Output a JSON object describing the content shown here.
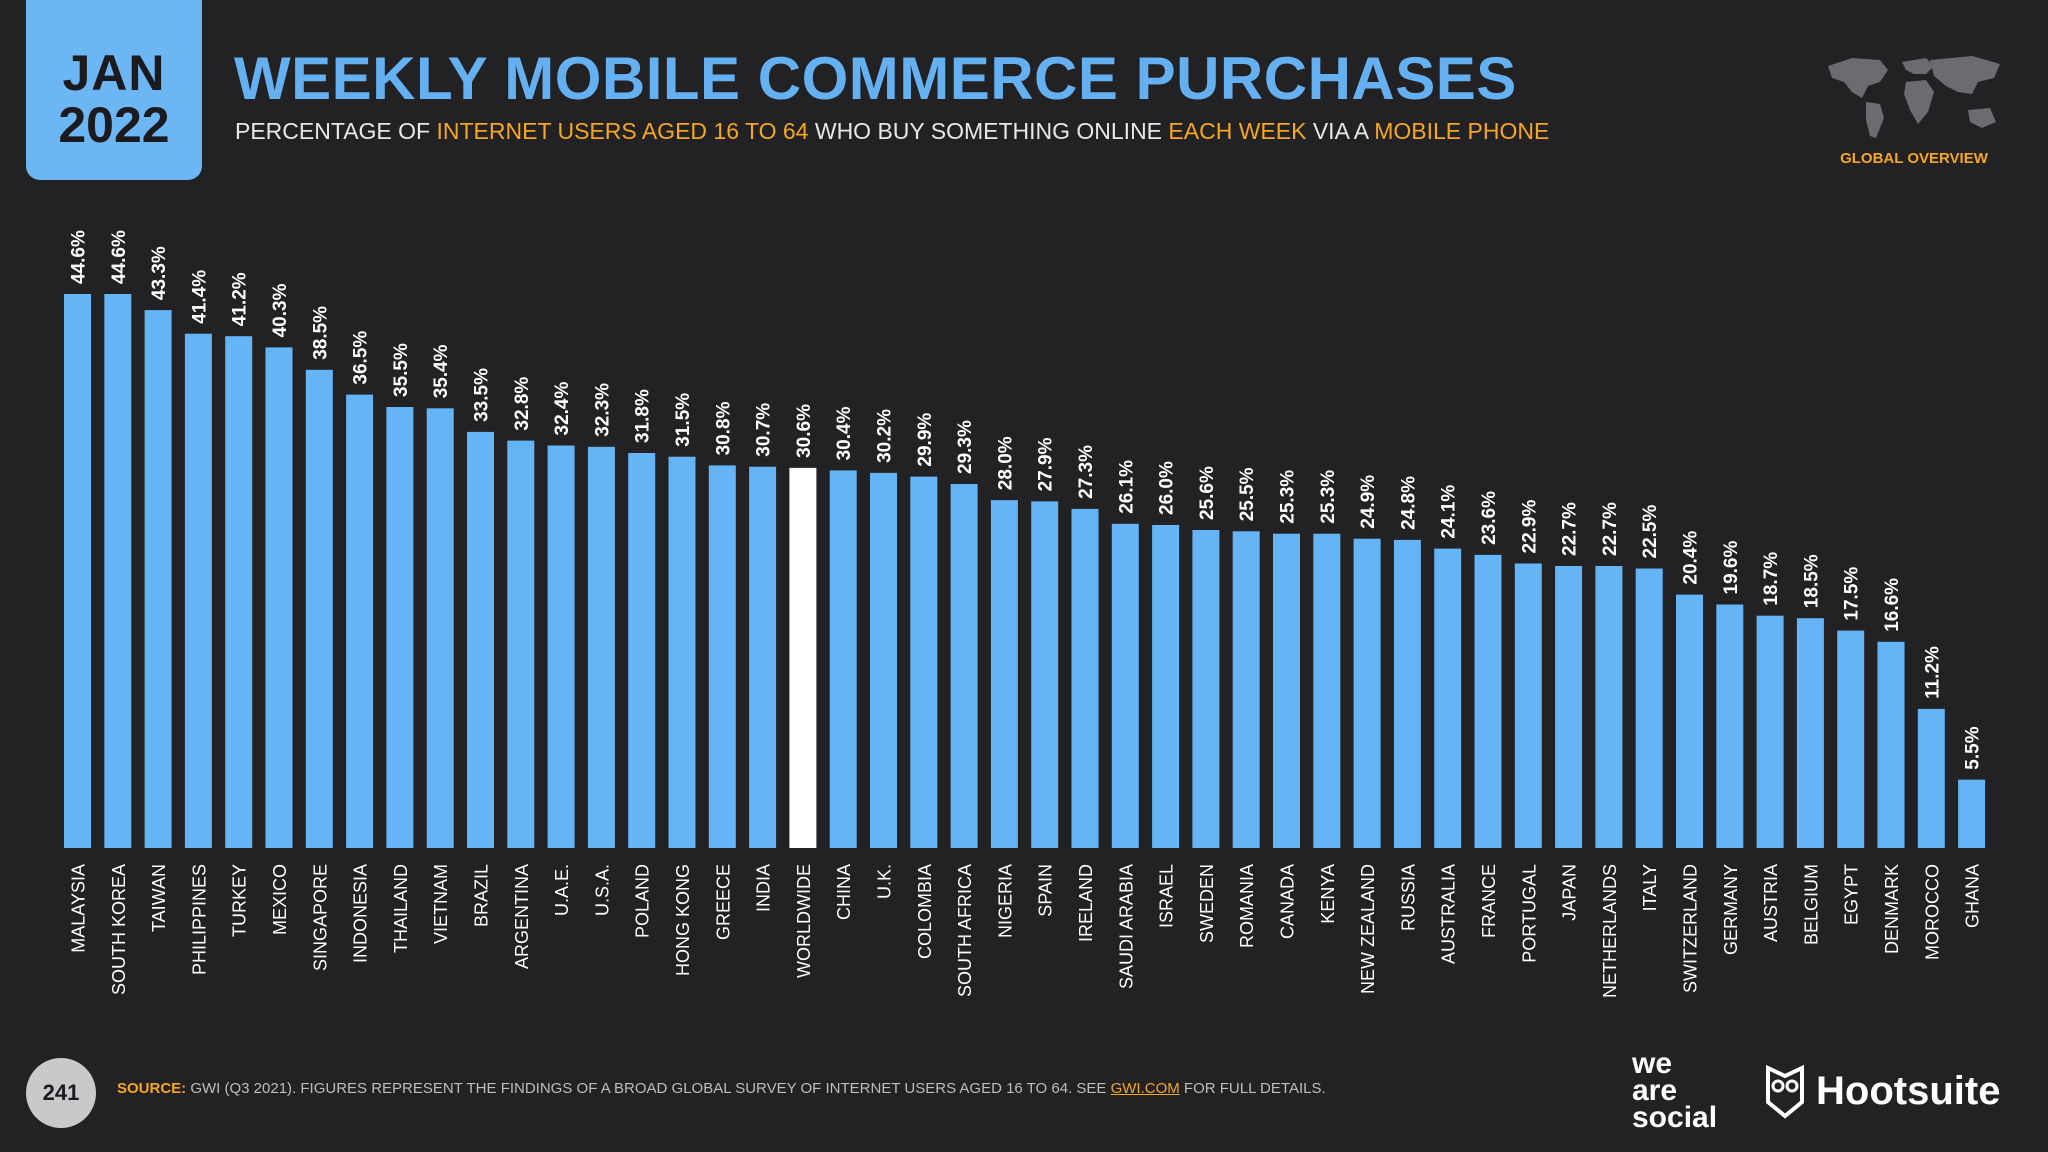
{
  "header": {
    "month": "JAN",
    "year": "2022",
    "title": "WEEKLY MOBILE COMMERCE PURCHASES",
    "subtitle_parts": [
      "PERCENTAGE OF ",
      "INTERNET USERS AGED 16 TO 64",
      " WHO BUY SOMETHING ONLINE ",
      "EACH WEEK",
      " VIA A ",
      "MOBILE PHONE"
    ],
    "section_label": "GLOBAL OVERVIEW"
  },
  "footer": {
    "page_number": "241",
    "source_label": "SOURCE:",
    "source_text_1": " GWI (Q3 2021). FIGURES REPRESENT THE FINDINGS OF A BROAD GLOBAL SURVEY OF INTERNET USERS AGED 16 TO 64. SEE ",
    "source_link": "GWI.COM",
    "source_text_2": " FOR FULL DETAILS.",
    "brand_1_line1": "we",
    "brand_1_line2": "are",
    "brand_1_line3": "social",
    "brand_2": "Hootsuite"
  },
  "chart_data": {
    "type": "bar",
    "value_suffix": "%",
    "highlight_category": "WORLDWIDE",
    "colors": {
      "bar": "#64b4f6",
      "highlight": "#ffffff",
      "background": "#222225"
    },
    "ylim": [
      0,
      50
    ],
    "categories": [
      "MALAYSIA",
      "SOUTH KOREA",
      "TAIWAN",
      "PHILIPPINES",
      "TURKEY",
      "MEXICO",
      "SINGAPORE",
      "INDONESIA",
      "THAILAND",
      "VIETNAM",
      "BRAZIL",
      "ARGENTINA",
      "U.A.E.",
      "U.S.A.",
      "POLAND",
      "HONG KONG",
      "GREECE",
      "INDIA",
      "WORLDWIDE",
      "CHINA",
      "U.K.",
      "COLOMBIA",
      "SOUTH AFRICA",
      "NIGERIA",
      "SPAIN",
      "IRELAND",
      "SAUDI ARABIA",
      "ISRAEL",
      "SWEDEN",
      "ROMANIA",
      "CANADA",
      "KENYA",
      "NEW ZEALAND",
      "RUSSIA",
      "AUSTRALIA",
      "FRANCE",
      "PORTUGAL",
      "JAPAN",
      "NETHERLANDS",
      "ITALY",
      "SWITZERLAND",
      "GERMANY",
      "AUSTRIA",
      "BELGIUM",
      "EGYPT",
      "DENMARK",
      "MOROCCO",
      "GHANA"
    ],
    "values": [
      44.6,
      44.6,
      43.3,
      41.4,
      41.2,
      40.3,
      38.5,
      36.5,
      35.5,
      35.4,
      33.5,
      32.8,
      32.4,
      32.3,
      31.8,
      31.5,
      30.8,
      30.7,
      30.6,
      30.4,
      30.2,
      29.9,
      29.3,
      28.0,
      27.9,
      27.3,
      26.1,
      26.0,
      25.6,
      25.5,
      25.3,
      25.3,
      24.9,
      24.8,
      24.1,
      23.6,
      22.9,
      22.7,
      22.7,
      22.5,
      20.4,
      19.6,
      18.7,
      18.5,
      17.5,
      16.6,
      11.2,
      5.5
    ],
    "value_labels": [
      "44.6%",
      "44.6%",
      "43.3%",
      "41.4%",
      "41.2%",
      "40.3%",
      "38.5%",
      "36.5%",
      "35.5%",
      "35.4%",
      "33.5%",
      "32.8%",
      "32.4%",
      "32.3%",
      "31.8%",
      "31.5%",
      "30.8%",
      "30.7%",
      "30.6%",
      "30.4%",
      "30.2%",
      "29.9%",
      "29.3%",
      "28.0%",
      "27.9%",
      "27.3%",
      "26.1%",
      "26.0%",
      "25.6%",
      "25.5%",
      "25.3%",
      "25.3%",
      "24.9%",
      "24.8%",
      "24.1%",
      "23.6%",
      "22.9%",
      "22.7%",
      "22.7%",
      "22.5%",
      "20.4%",
      "19.6%",
      "18.7%",
      "18.5%",
      "17.5%",
      "16.6%",
      "11.2%",
      "5.5%"
    ]
  }
}
